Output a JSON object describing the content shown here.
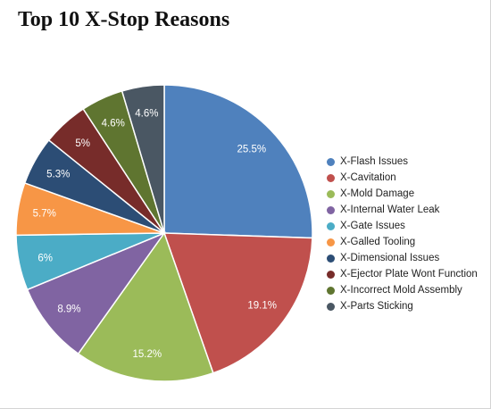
{
  "title": "Top 10 X-Stop Reasons",
  "chart_data": {
    "type": "pie",
    "title": "Top 10 X-Stop Reasons",
    "legend_position": "right",
    "start_angle": "top, clockwise",
    "slices": [
      {
        "label": "X-Flash Issues",
        "value": 25.5,
        "display": "25.5%",
        "color": "#4F81BD"
      },
      {
        "label": "X-Cavitation",
        "value": 19.1,
        "display": "19.1%",
        "color": "#C0504D"
      },
      {
        "label": "X-Mold Damage",
        "value": 15.2,
        "display": "15.2%",
        "color": "#9BBB59"
      },
      {
        "label": "X-Internal Water Leak",
        "value": 8.9,
        "display": "8.9%",
        "color": "#8064A2"
      },
      {
        "label": "X-Gate Issues",
        "value": 6,
        "display": "6%",
        "color": "#4BACC6"
      },
      {
        "label": "X-Galled Tooling",
        "value": 5.7,
        "display": "5.7%",
        "color": "#F79646"
      },
      {
        "label": "X-Dimensional Issues",
        "value": 5.3,
        "display": "5.3%",
        "color": "#2C4D75"
      },
      {
        "label": "X-Ejector Plate Wont Function",
        "value": 5,
        "display": "5%",
        "color": "#772C2A"
      },
      {
        "label": "X-Incorrect Mold Assembly",
        "value": 4.6,
        "display": "4.6%",
        "color": "#5F7530"
      },
      {
        "label": "X-Parts Sticking",
        "value": 4.6,
        "display": "4.6%",
        "color": "#4A5763"
      }
    ]
  }
}
